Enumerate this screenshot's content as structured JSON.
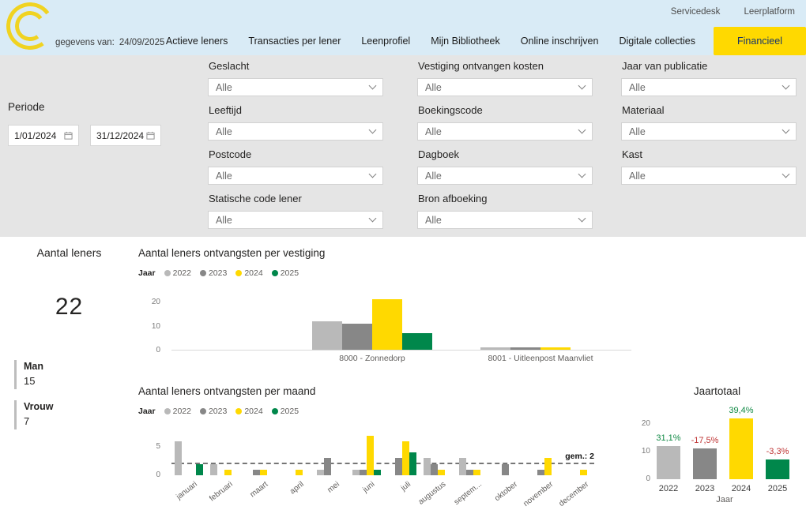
{
  "header": {
    "logo_icon": "c-arcs-logo",
    "data_date_label": "gegevens van:",
    "data_date": "24/09/2025",
    "top_links": [
      "Servicedesk",
      "Leerplatform"
    ],
    "nav_tabs": [
      {
        "label": "Actieve leners",
        "active": false
      },
      {
        "label": "Transacties per lener",
        "active": false
      },
      {
        "label": "Leenprofiel",
        "active": false
      },
      {
        "label": "Mijn Bibliotheek",
        "active": false
      },
      {
        "label": "Online inschrijven",
        "active": false
      },
      {
        "label": "Digitale collecties",
        "active": false
      },
      {
        "label": "Financieel",
        "active": true
      }
    ],
    "colors": {
      "header_bg": "#d9ebf6",
      "accent_yellow": "#ffd900",
      "active_tab_text": "#15356b"
    }
  },
  "filters": {
    "panel_bg": "#e5e5e5",
    "periode": {
      "label": "Periode",
      "from": "1/01/2024",
      "to": "31/12/2024"
    },
    "columns": [
      {
        "items": [
          {
            "label": "Geslacht",
            "value": "Alle"
          },
          {
            "label": "Leeftijd",
            "value": "Alle"
          },
          {
            "label": "Postcode",
            "value": "Alle"
          },
          {
            "label": "Statische code lener",
            "value": "Alle"
          }
        ]
      },
      {
        "items": [
          {
            "label": "Vestiging ontvangen kosten",
            "value": "Alle"
          },
          {
            "label": "Boekingscode",
            "value": "Alle"
          },
          {
            "label": "Dagboek",
            "value": "Alle"
          },
          {
            "label": "Bron afboeking",
            "value": "Alle"
          }
        ]
      },
      {
        "items": [
          {
            "label": "Jaar van publicatie",
            "value": "Alle"
          },
          {
            "label": "Materiaal",
            "value": "Alle"
          },
          {
            "label": "Kast",
            "value": "Alle"
          }
        ]
      }
    ]
  },
  "kpi": {
    "title": "Aantal leners",
    "value": "22",
    "items": [
      {
        "label": "Man",
        "value": "15"
      },
      {
        "label": "Vrouw",
        "value": "7"
      }
    ]
  },
  "chart_data": [
    {
      "type": "bar",
      "title": "Aantal leners ontvangsten per vestiging",
      "legend_title": "Jaar",
      "legend_position": "top",
      "categories": [
        "8000 - Zonnedorp",
        "8001 - Uitleenpost Maanvliet"
      ],
      "series": [
        {
          "name": "2022",
          "color": "#b9b9b9",
          "values": [
            12,
            1
          ]
        },
        {
          "name": "2023",
          "color": "#878787",
          "values": [
            11,
            1
          ]
        },
        {
          "name": "2024",
          "color": "#ffd900",
          "values": [
            21,
            1
          ]
        },
        {
          "name": "2025",
          "color": "#00874b",
          "values": [
            7,
            0
          ]
        }
      ],
      "ylim": [
        0,
        24
      ],
      "yticks": [
        0,
        10,
        20
      ]
    },
    {
      "type": "bar",
      "title": "Aantal leners ontvangsten per maand",
      "legend_title": "Jaar",
      "legend_position": "top",
      "categories": [
        "januari",
        "februari",
        "maart",
        "april",
        "mei",
        "juni",
        "juli",
        "augustus",
        "septem...",
        "oktober",
        "november",
        "december"
      ],
      "series": [
        {
          "name": "2022",
          "color": "#b9b9b9",
          "values": [
            6,
            2,
            0,
            0,
            1,
            1,
            0,
            3,
            3,
            0,
            0,
            0
          ]
        },
        {
          "name": "2023",
          "color": "#878787",
          "values": [
            0,
            0,
            1,
            0,
            3,
            1,
            3,
            2,
            1,
            2,
            1,
            0
          ]
        },
        {
          "name": "2024",
          "color": "#ffd900",
          "values": [
            0,
            1,
            1,
            1,
            0,
            7,
            6,
            1,
            1,
            0,
            3,
            1
          ]
        },
        {
          "name": "2025",
          "color": "#00874b",
          "values": [
            2,
            0,
            0,
            0,
            0,
            1,
            4,
            0,
            0,
            0,
            0,
            0
          ]
        }
      ],
      "avg_line": {
        "value": 2,
        "label": "gem.: 2"
      },
      "ylim": [
        0,
        8
      ],
      "yticks": [
        0,
        5
      ]
    },
    {
      "type": "bar",
      "title": "Jaartotaal",
      "xlabel": "Jaar",
      "categories": [
        "2022",
        "2023",
        "2024",
        "2025"
      ],
      "values": [
        12,
        11,
        22,
        7
      ],
      "bar_colors": [
        "#b9b9b9",
        "#878787",
        "#ffd900",
        "#00874b"
      ],
      "bar_labels": [
        "31,1%",
        "-17,5%",
        "39,4%",
        "-3,3%"
      ],
      "bar_label_colors": [
        "#128a46",
        "#bf3434",
        "#128a46",
        "#bf3434"
      ],
      "ylim": [
        0,
        24
      ],
      "yticks": [
        0,
        10,
        20
      ]
    }
  ]
}
